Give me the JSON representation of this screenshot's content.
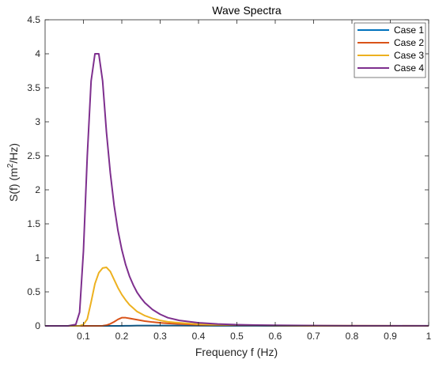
{
  "chart_data": {
    "type": "line",
    "title": "Wave Spectra",
    "xlabel": "Frequency f (Hz)",
    "ylabel": {
      "prefix": "S(f) (m",
      "sup": "2",
      "suffix": "/Hz)"
    },
    "xlim": [
      0,
      1
    ],
    "ylim": [
      0,
      4.5
    ],
    "xticks": [
      0.1,
      0.2,
      0.3,
      0.4,
      0.5,
      0.6,
      0.7,
      0.8,
      0.9,
      1
    ],
    "xtick_labels": [
      "0.1",
      "0.2",
      "0.3",
      "0.4",
      "0.5",
      "0.6",
      "0.7",
      "0.8",
      "0.9",
      "1"
    ],
    "yticks": [
      0,
      0.5,
      1,
      1.5,
      2,
      2.5,
      3,
      3.5,
      4,
      4.5
    ],
    "ytick_labels": [
      "0",
      "0.5",
      "1",
      "1.5",
      "2",
      "2.5",
      "3",
      "3.5",
      "4",
      "4.5"
    ],
    "grid": false,
    "legend_position": "top-right",
    "x": [
      0,
      0.06,
      0.08,
      0.09,
      0.1,
      0.11,
      0.12,
      0.13,
      0.14,
      0.15,
      0.16,
      0.17,
      0.18,
      0.19,
      0.2,
      0.21,
      0.22,
      0.23,
      0.24,
      0.25,
      0.26,
      0.28,
      0.3,
      0.32,
      0.35,
      0.4,
      0.45,
      0.5,
      0.55,
      0.6,
      0.7,
      0.8,
      0.9,
      1.0
    ],
    "series": [
      {
        "name": "Case 1",
        "color": "#0072BD",
        "values": [
          0,
          0,
          0,
          0,
          0,
          0,
          0,
          0,
          0,
          0,
          0,
          0,
          0,
          0,
          0,
          0.001,
          0.002,
          0.003,
          0.004,
          0.005,
          0.005,
          0.005,
          0.005,
          0.004,
          0.004,
          0.003,
          0.002,
          0.001,
          0.001,
          0,
          0,
          0,
          0,
          0
        ]
      },
      {
        "name": "Case 2",
        "color": "#D95319",
        "values": [
          0,
          0,
          0,
          0,
          0,
          0,
          0,
          0,
          0,
          0.001,
          0.01,
          0.03,
          0.06,
          0.095,
          0.12,
          0.12,
          0.11,
          0.1,
          0.09,
          0.08,
          0.07,
          0.056,
          0.045,
          0.036,
          0.028,
          0.018,
          0.012,
          0.008,
          0.006,
          0.004,
          0.002,
          0.001,
          0,
          0
        ]
      },
      {
        "name": "Case 3",
        "color": "#EDB120",
        "values": [
          0,
          0,
          0,
          0,
          0.02,
          0.1,
          0.35,
          0.62,
          0.78,
          0.85,
          0.86,
          0.8,
          0.68,
          0.56,
          0.46,
          0.38,
          0.31,
          0.26,
          0.21,
          0.18,
          0.15,
          0.11,
          0.08,
          0.06,
          0.045,
          0.025,
          0.015,
          0.01,
          0.007,
          0.005,
          0.002,
          0.001,
          0.001,
          0
        ]
      },
      {
        "name": "Case 4",
        "color": "#7E2F8E",
        "values": [
          0,
          0,
          0.02,
          0.2,
          1.1,
          2.5,
          3.6,
          4.0,
          4.0,
          3.6,
          2.85,
          2.25,
          1.77,
          1.4,
          1.12,
          0.9,
          0.73,
          0.6,
          0.49,
          0.41,
          0.34,
          0.24,
          0.17,
          0.12,
          0.08,
          0.045,
          0.028,
          0.018,
          0.012,
          0.008,
          0.004,
          0.002,
          0.001,
          0.001
        ]
      }
    ]
  }
}
